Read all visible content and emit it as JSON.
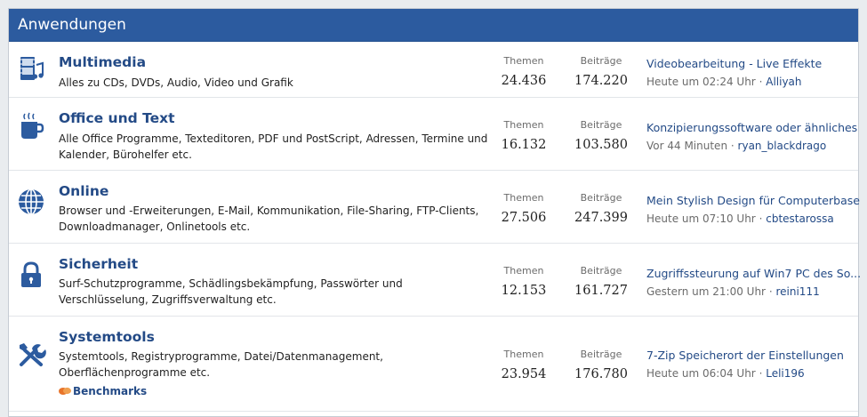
{
  "header": {
    "title": "Anwendungen"
  },
  "labels": {
    "themen": "Themen",
    "beitraege": "Beiträge",
    "separator": "·"
  },
  "forums": [
    {
      "icon": "multimedia-icon",
      "title": "Multimedia",
      "description": "Alles zu CDs, DVDs, Audio, Video und Grafik",
      "themen": "24.436",
      "beitraege": "174.220",
      "last_thread": "Videobearbeitung - Live Effekte",
      "last_time": "Heute um 02:24 Uhr",
      "last_user": "Alliyah"
    },
    {
      "icon": "coffee-mug-icon",
      "title": "Office und Text",
      "description": "Alle Office Programme, Texteditoren, PDF und PostScript, Adressen, Termine und Kalender, Bürohelfer etc.",
      "themen": "16.132",
      "beitraege": "103.580",
      "last_thread": "Konzipierungssoftware oder ähnliches",
      "last_time": "Vor 44 Minuten",
      "last_user": "ryan_blackdrago"
    },
    {
      "icon": "globe-icon",
      "title": "Online",
      "description": "Browser und -Erweiterungen, E-Mail, Kommunikation, File-Sharing, FTP-Clients, Downloadmanager, Onlinetools etc.",
      "themen": "27.506",
      "beitraege": "247.399",
      "last_thread": "Mein Stylish Design für Computerbase",
      "last_time": "Heute um 07:10 Uhr",
      "last_user": "cbtestarossa"
    },
    {
      "icon": "padlock-icon",
      "title": "Sicherheit",
      "description": "Surf-Schutzprogramme, Schädlingsbekämpfung, Passwörter und Verschlüsselung, Zugriffsverwaltung etc.",
      "themen": "12.153",
      "beitraege": "161.727",
      "last_thread": "Zugriffssteurung auf Win7 PC des So...",
      "last_time": "Gestern um 21:00 Uhr",
      "last_user": "reini111"
    },
    {
      "icon": "tools-icon",
      "title": "Systemtools",
      "description": "Systemtools, Registryprogramme, Datei/Datenmanagement, Oberflächenprogramme etc.",
      "subforum": "Benchmarks",
      "themen": "23.954",
      "beitraege": "176.780",
      "last_thread": "7-Zip Speicherort der Einstellungen",
      "last_time": "Heute um 06:04 Uhr",
      "last_user": "Leli196"
    }
  ]
}
